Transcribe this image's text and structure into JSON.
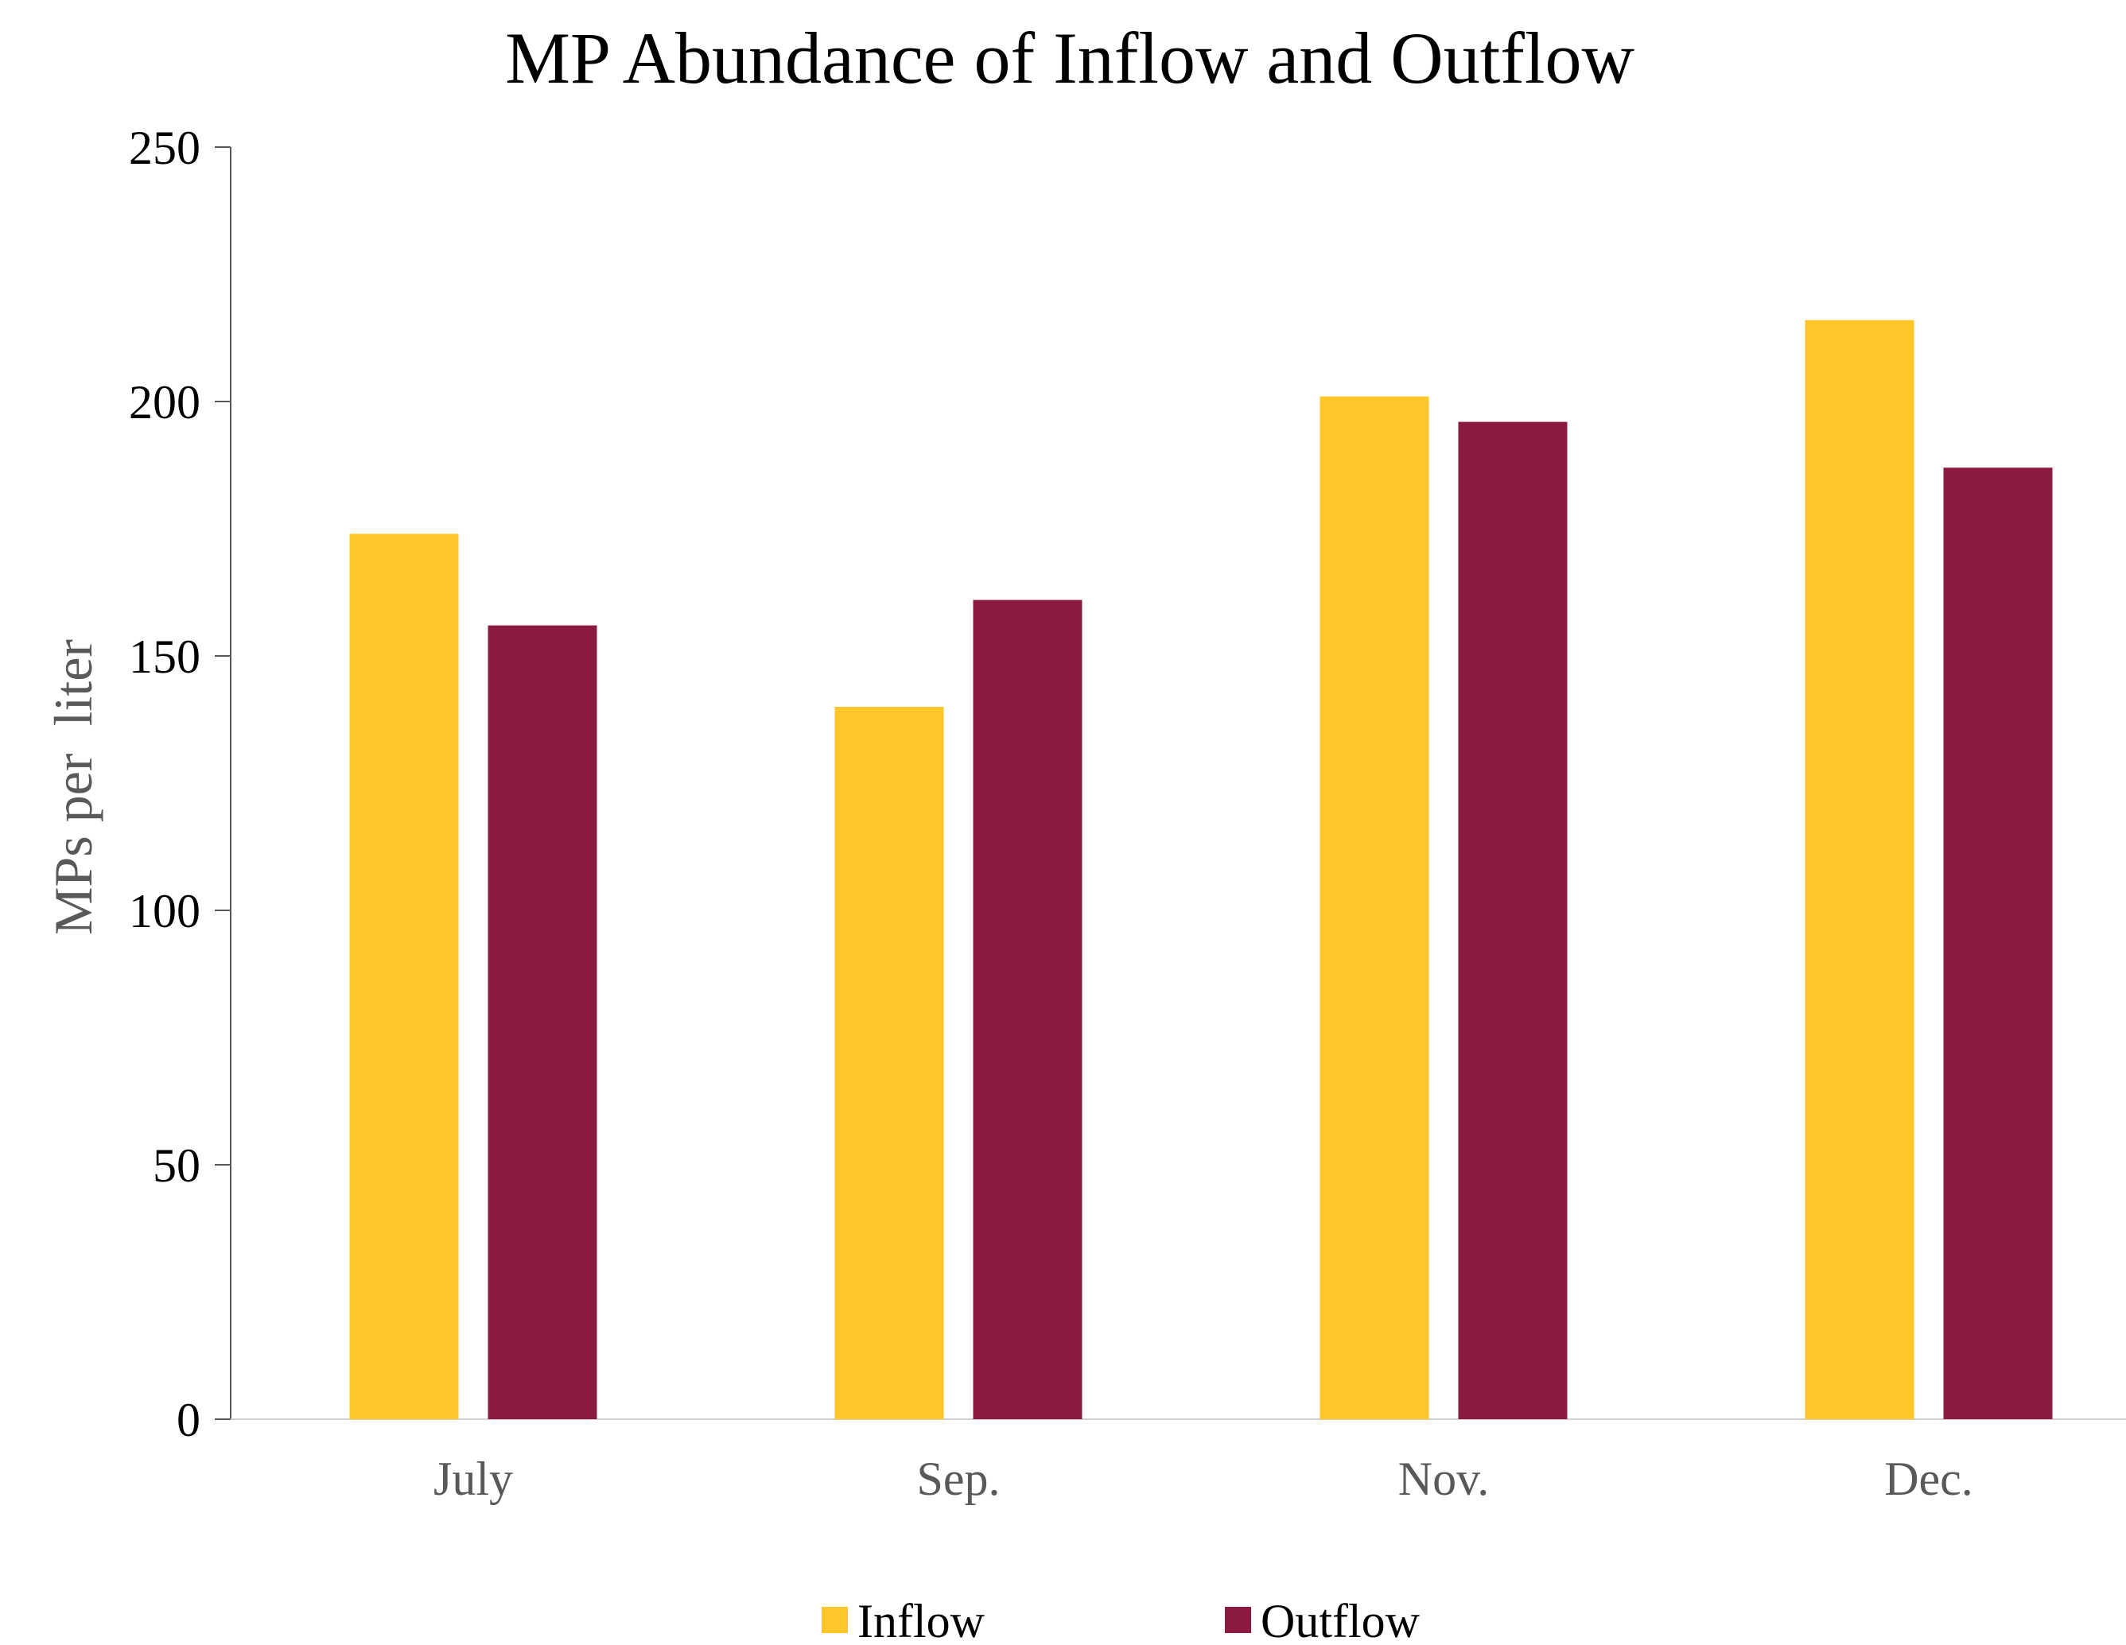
{
  "chart_data": {
    "type": "bar",
    "title": "MP Abundance of Inflow and Outflow",
    "xlabel": "",
    "ylabel": "MPs per  liter",
    "categories": [
      "July",
      "Sep.",
      "Nov.",
      "Dec."
    ],
    "series": [
      {
        "name": "Inflow",
        "color": "#FFC629",
        "values": [
          174,
          140,
          201,
          216
        ]
      },
      {
        "name": "Outflow",
        "color": "#8B1C40",
        "values": [
          156,
          161,
          196,
          187
        ]
      }
    ],
    "ylim": [
      0,
      250
    ],
    "yticks": [
      0,
      50,
      100,
      150,
      200,
      250
    ],
    "grid": false,
    "legend_position": "bottom"
  }
}
